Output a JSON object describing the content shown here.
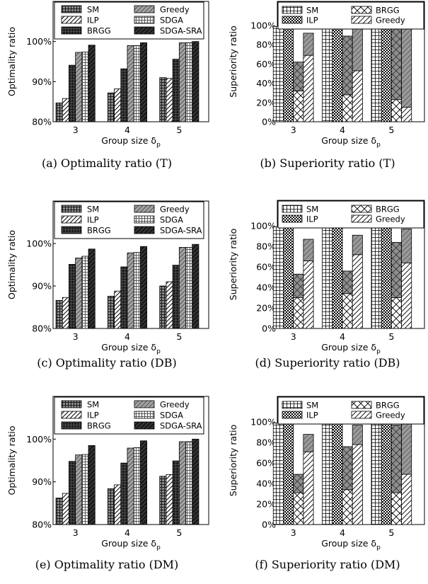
{
  "chart_data": [
    {
      "id": "a",
      "type": "bar",
      "caption": "(a) Optimality ratio (T)",
      "ylabel": "Optimality ratio",
      "xlabel": "Group size δ",
      "xlabel_subscript": "p",
      "categories": [
        "3",
        "4",
        "5"
      ],
      "yticks": [
        "80%",
        "90%",
        "100%"
      ],
      "ylim": [
        80,
        110
      ],
      "legend": [
        "SM",
        "ILP",
        "BRGG",
        "Greedy",
        "SDGA",
        "SDGA-SRA"
      ],
      "series": [
        {
          "name": "SM",
          "values": [
            84.7,
            87.2,
            91.0
          ]
        },
        {
          "name": "ILP",
          "values": [
            85.8,
            88.2,
            90.8
          ]
        },
        {
          "name": "BRGG",
          "values": [
            94.1,
            93.2,
            95.6
          ]
        },
        {
          "name": "Greedy",
          "values": [
            97.3,
            99.0,
            99.7
          ]
        },
        {
          "name": "SDGA",
          "values": [
            97.4,
            99.0,
            99.7
          ]
        },
        {
          "name": "SDGA-SRA",
          "values": [
            99.1,
            99.7,
            100.0
          ]
        }
      ]
    },
    {
      "id": "b",
      "type": "stacked-bar",
      "caption": "(b) Superiority ratio (T)",
      "ylabel": "Superiority ratio",
      "xlabel": "Group size δ",
      "xlabel_subscript": "p",
      "categories": [
        "3",
        "4",
        "5"
      ],
      "yticks": [
        "0%",
        "20%",
        "40%",
        "60%",
        "80%",
        "100%"
      ],
      "ylim": [
        0,
        125
      ],
      "legend": [
        "SM",
        "ILP",
        "BRGG",
        "Greedy"
      ],
      "series": [
        {
          "name": "SM",
          "values": [
            99,
            99.5,
            100
          ]
        },
        {
          "name": "ILP",
          "values": [
            99,
            99.5,
            100
          ]
        },
        {
          "name": "BRGG",
          "lower": [
            32,
            28,
            23
          ],
          "upper": [
            62,
            89,
            99
          ]
        },
        {
          "name": "Greedy",
          "lower": [
            69,
            53,
            15
          ],
          "upper": [
            92,
            99,
            99
          ]
        }
      ]
    },
    {
      "id": "c",
      "type": "bar",
      "caption": "(c) Optimality ratio (DB)",
      "ylabel": "Optimality ratio",
      "xlabel": "Group size δ",
      "xlabel_subscript": "p",
      "categories": [
        "3",
        "4",
        "5"
      ],
      "yticks": [
        "80%",
        "90%",
        "100%"
      ],
      "ylim": [
        80,
        110
      ],
      "legend": [
        "SM",
        "ILP",
        "BRGG",
        "Greedy",
        "SDGA",
        "SDGA-SRA"
      ],
      "series": [
        {
          "name": "SM",
          "values": [
            86.6,
            87.6,
            90.0
          ]
        },
        {
          "name": "ILP",
          "values": [
            87.3,
            88.8,
            91.0
          ]
        },
        {
          "name": "BRGG",
          "values": [
            95.1,
            94.5,
            94.9
          ]
        },
        {
          "name": "Greedy",
          "values": [
            96.6,
            97.8,
            99.1
          ]
        },
        {
          "name": "SDGA",
          "values": [
            97.0,
            97.9,
            99.1
          ]
        },
        {
          "name": "SDGA-SRA",
          "values": [
            98.7,
            99.3,
            99.8
          ]
        }
      ]
    },
    {
      "id": "d",
      "type": "stacked-bar",
      "caption": "(d) Superiority ratio (DB)",
      "ylabel": "Superiority ratio",
      "xlabel": "Group size δ",
      "xlabel_subscript": "p",
      "categories": [
        "3",
        "4",
        "5"
      ],
      "yticks": [
        "0%",
        "20%",
        "40%",
        "60%",
        "80%",
        "100%"
      ],
      "ylim": [
        0,
        125
      ],
      "legend": [
        "SM",
        "ILP",
        "BRGG",
        "Greedy"
      ],
      "series": [
        {
          "name": "SM",
          "values": [
            99,
            99,
            99
          ]
        },
        {
          "name": "ILP",
          "values": [
            99,
            99,
            99
          ]
        },
        {
          "name": "BRGG",
          "lower": [
            30,
            34,
            30
          ],
          "upper": [
            53,
            56,
            84
          ]
        },
        {
          "name": "Greedy",
          "lower": [
            66,
            72,
            64
          ],
          "upper": [
            87,
            91,
            97
          ]
        }
      ]
    },
    {
      "id": "e",
      "type": "bar",
      "caption": "(e) Optimality ratio (DM)",
      "ylabel": "Optimality ratio",
      "xlabel": "Group size δ",
      "xlabel_subscript": "p",
      "categories": [
        "3",
        "4",
        "5"
      ],
      "yticks": [
        "80%",
        "90%",
        "100%"
      ],
      "ylim": [
        80,
        110
      ],
      "legend": [
        "SM",
        "ILP",
        "BRGG",
        "Greedy",
        "SDGA",
        "SDGA-SRA"
      ],
      "series": [
        {
          "name": "SM",
          "values": [
            86.2,
            88.4,
            91.3
          ]
        },
        {
          "name": "ILP",
          "values": [
            87.3,
            89.3,
            91.7
          ]
        },
        {
          "name": "BRGG",
          "values": [
            94.8,
            94.4,
            94.9
          ]
        },
        {
          "name": "Greedy",
          "values": [
            96.3,
            97.9,
            99.4
          ]
        },
        {
          "name": "SDGA",
          "values": [
            96.4,
            98.0,
            99.4
          ]
        },
        {
          "name": "SDGA-SRA",
          "values": [
            98.5,
            99.6,
            100.0
          ]
        }
      ]
    },
    {
      "id": "f",
      "type": "stacked-bar",
      "caption": "(f) Superiority ratio (DM)",
      "ylabel": "Superiority ratio",
      "xlabel": "Group size δ",
      "xlabel_subscript": "p",
      "categories": [
        "3",
        "4",
        "5"
      ],
      "yticks": [
        "0%",
        "20%",
        "40%",
        "60%",
        "80%",
        "100%"
      ],
      "ylim": [
        0,
        125
      ],
      "legend": [
        "SM",
        "ILP",
        "BRGG",
        "Greedy"
      ],
      "series": [
        {
          "name": "SM",
          "values": [
            99,
            100,
            100
          ]
        },
        {
          "name": "ILP",
          "values": [
            99,
            100,
            100
          ]
        },
        {
          "name": "BRGG",
          "lower": [
            31,
            34,
            31
          ],
          "upper": [
            49,
            76,
            97
          ]
        },
        {
          "name": "Greedy",
          "lower": [
            71,
            78,
            49
          ],
          "upper": [
            88,
            97,
            100
          ]
        }
      ]
    }
  ]
}
